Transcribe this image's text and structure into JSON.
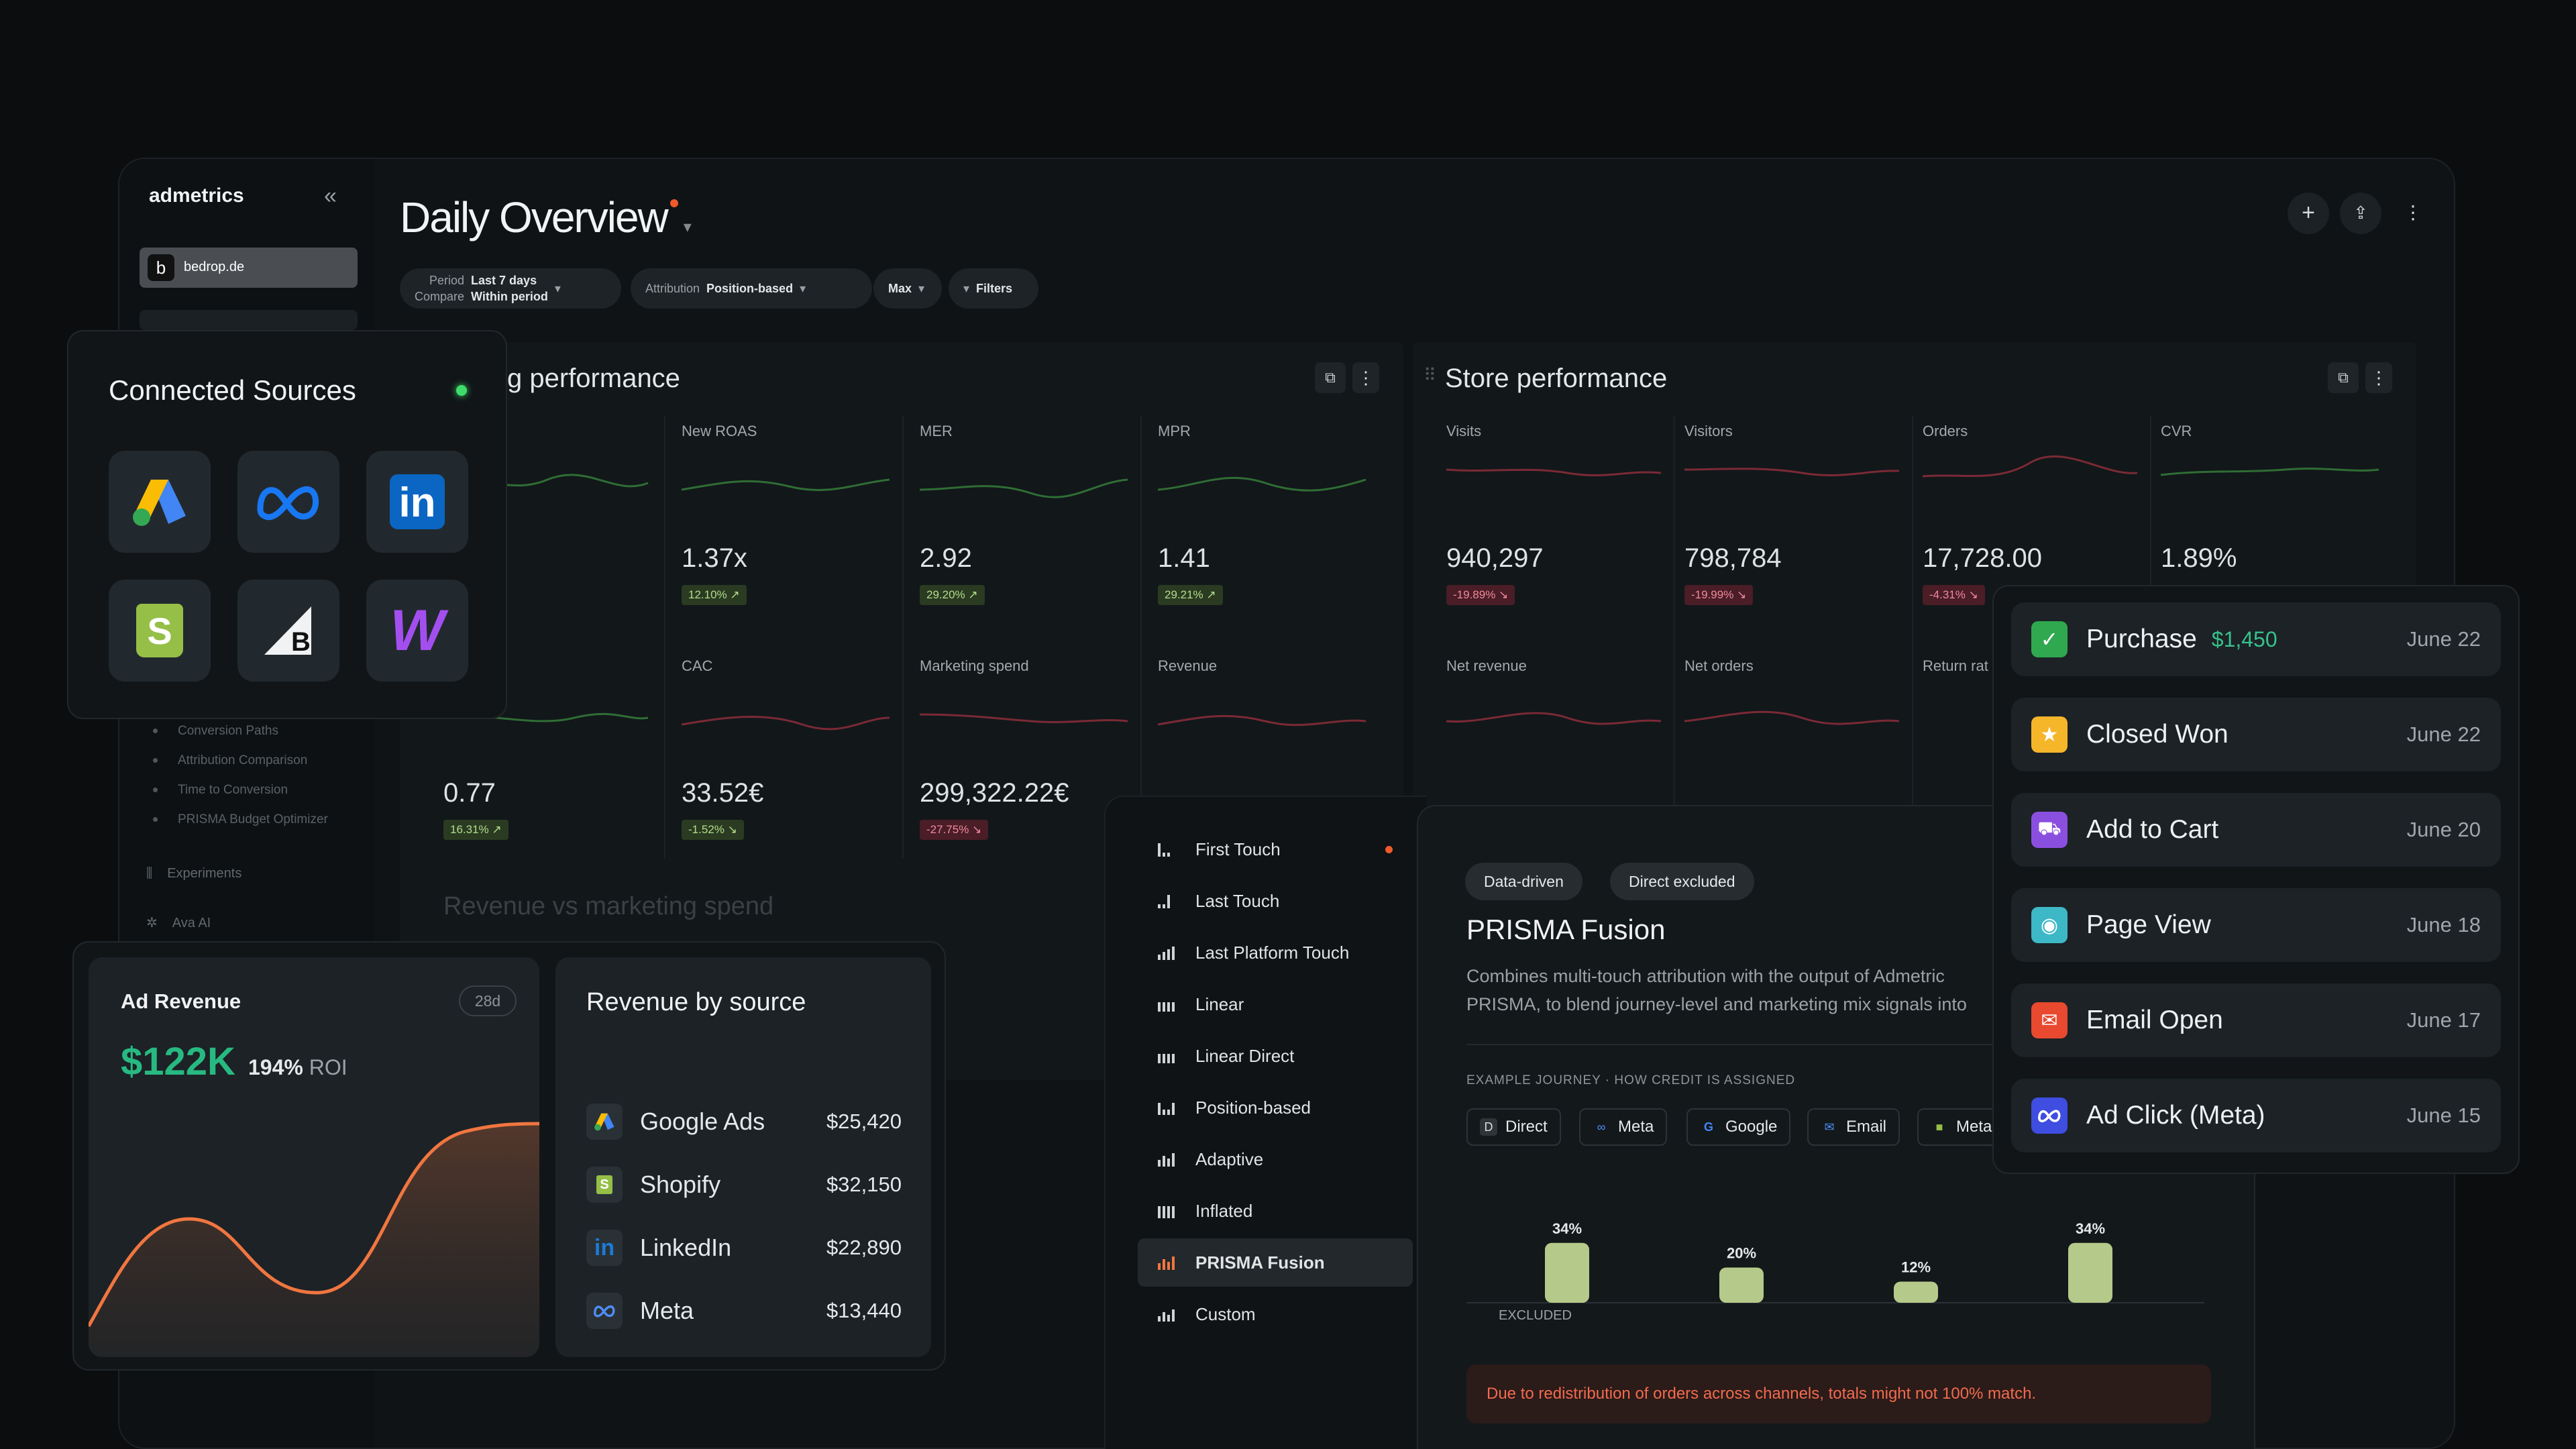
{
  "app": {
    "brand": "admetrics",
    "collapse_icon": "«",
    "account": {
      "initial": "b",
      "name": "bedrop.de"
    },
    "page_title": "Daily Overview",
    "nav_sub": [
      "Conversion Paths",
      "Attribution Comparison",
      "Time to Conversion",
      "PRISMA Budget Optimizer"
    ],
    "nav_items": [
      "Experiments",
      "Ava AI"
    ],
    "filters": {
      "period_label": "Period",
      "period_value": "Last 7 days",
      "compare_label": "Compare",
      "compare_value": "Within period",
      "attribution_label": "Attribution",
      "attribution_value": "Position-based",
      "window": "Max",
      "filters_label": "Filters"
    },
    "advertising_title": "ising performance",
    "store_title": "Store performance",
    "ad_metrics": [
      {
        "label": "New ROAS",
        "value": "1.37x",
        "delta": "12.10%",
        "dir": "up"
      },
      {
        "label": "MER",
        "value": "2.92",
        "delta": "29.20%",
        "dir": "up"
      },
      {
        "label": "MPR",
        "value": "1.41",
        "delta": "29.21%",
        "dir": "up"
      },
      {
        "label": "",
        "value": "0.77",
        "delta": "16.31%",
        "dir": "up"
      },
      {
        "label": "CAC",
        "value": "33.52€",
        "delta": "-1.52%",
        "dir": "up"
      },
      {
        "label": "Marketing spend",
        "value": "299,322.22€",
        "delta": "-27.75%",
        "dir": "down"
      },
      {
        "label": "Revenue",
        "value": "",
        "delta": "",
        "dir": ""
      }
    ],
    "store_metrics": [
      {
        "label": "Visits",
        "value": "940,297",
        "delta": "-19.89%",
        "dir": "down"
      },
      {
        "label": "Visitors",
        "value": "798,784",
        "delta": "-19.99%",
        "dir": "down"
      },
      {
        "label": "Orders",
        "value": "17,728.00",
        "delta": "-4.31%",
        "dir": "down"
      },
      {
        "label": "CVR",
        "value": "1.89%",
        "delta": "",
        "dir": ""
      },
      {
        "label": "Net revenue",
        "value": "",
        "delta": "",
        "dir": ""
      },
      {
        "label": "Net orders",
        "value": "",
        "delta": "",
        "dir": ""
      },
      {
        "label": "Return rat",
        "value": "",
        "delta": "",
        "dir": ""
      }
    ],
    "rev_vs_spend_title": "Revenue vs marketing spend"
  },
  "connected_sources": {
    "title": "Connected Sources",
    "status_color": "#3ddc6a",
    "sources": [
      "google-ads-icon",
      "meta-icon",
      "linkedin-icon",
      "shopify-icon",
      "bigcommerce-icon",
      "woocommerce-icon"
    ]
  },
  "ad_revenue": {
    "title": "Ad Revenue",
    "period": "28d",
    "value": "$122K",
    "roi_value": "194%",
    "roi_label": "ROI"
  },
  "revenue_by_source": {
    "title": "Revenue by source",
    "rows": [
      {
        "name": "Google Ads",
        "value": "$25,420",
        "icon": "google-ads-icon"
      },
      {
        "name": "Shopify",
        "value": "$32,150",
        "icon": "shopify-icon"
      },
      {
        "name": "LinkedIn",
        "value": "$22,890",
        "icon": "linkedin-icon"
      },
      {
        "name": "Meta",
        "value": "$13,440",
        "icon": "meta-icon"
      }
    ]
  },
  "attribution_models": {
    "items": [
      "First Touch",
      "Last Touch",
      "Last Platform Touch",
      "Linear",
      "Linear Direct",
      "Position-based",
      "Adaptive",
      "Inflated",
      "PRISMA Fusion",
      "Custom"
    ],
    "selected": "PRISMA Fusion",
    "marked": "First Touch"
  },
  "prisma": {
    "tags": [
      "Data-driven",
      "Direct excluded"
    ],
    "title": "PRISMA Fusion",
    "desc_line1": "Combines multi-touch attribution with the output of Admetric",
    "desc_line2": "PRISMA, to blend journey-level and marketing mix signals into",
    "journey_label": "EXAMPLE JOURNEY · HOW CREDIT IS ASSIGNED",
    "journey": [
      "Direct",
      "Meta",
      "Google",
      "Email",
      "Meta"
    ],
    "excluded_label": "EXCLUDED",
    "notice": "Due to redistribution of orders across channels, totals might not 100% match."
  },
  "chart_data": {
    "type": "bar",
    "categories": [
      "Meta",
      "Google",
      "Email",
      "Meta"
    ],
    "values": [
      34,
      20,
      12,
      34
    ],
    "value_labels": [
      "34%",
      "20%",
      "12%",
      "34%"
    ],
    "ylim": [
      0,
      40
    ]
  },
  "events": [
    {
      "title": "Purchase",
      "amount": "$1,450",
      "date": "June 22",
      "icon": "check-icon",
      "color": "#2fa84f"
    },
    {
      "title": "Closed Won",
      "amount": "",
      "date": "June 22",
      "icon": "star-icon",
      "color": "#f5b62a"
    },
    {
      "title": "Add to Cart",
      "amount": "",
      "date": "June 20",
      "icon": "cart-icon",
      "color": "#8b4fe0"
    },
    {
      "title": "Page View",
      "amount": "",
      "date": "June 18",
      "icon": "eye-icon",
      "color": "#3db8c7"
    },
    {
      "title": "Email Open",
      "amount": "",
      "date": "June 17",
      "icon": "mail-icon",
      "color": "#e8492f"
    },
    {
      "title": "Ad Click (Meta)",
      "amount": "",
      "date": "June 15",
      "icon": "meta-icon",
      "color": "#3f4de0"
    }
  ]
}
